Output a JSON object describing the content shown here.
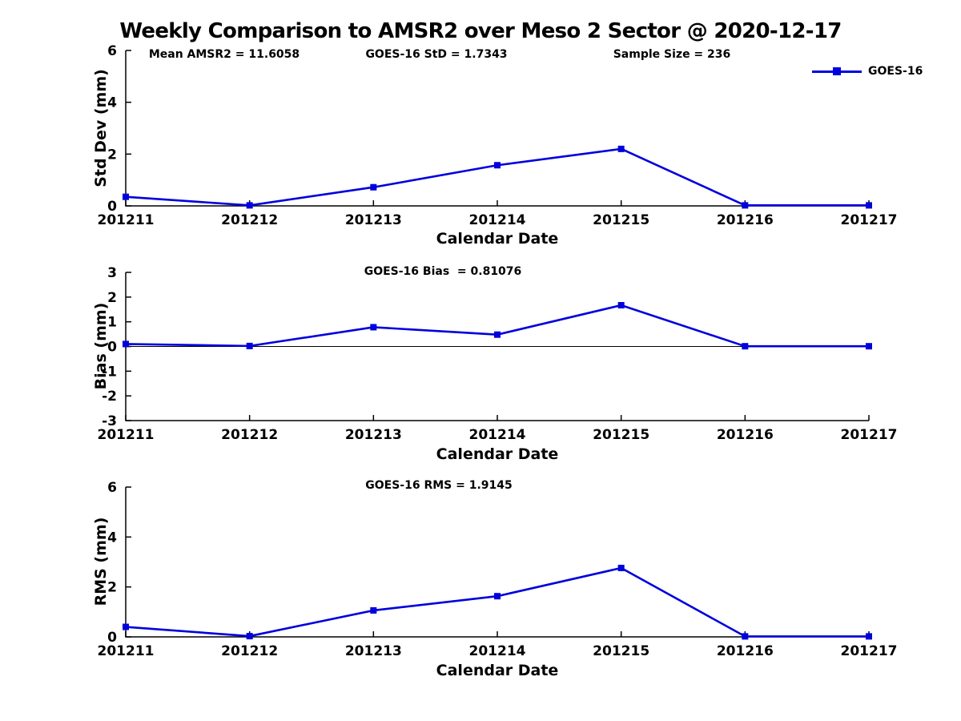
{
  "title": "Weekly Comparison to AMSR2 over Meso 2 Sector @ 2020-12-17",
  "colors": {
    "line": "#0000dd",
    "axis": "#000000",
    "text": "#000000",
    "background": "#ffffff"
  },
  "legend": {
    "label": "GOES-16",
    "position": "top-right"
  },
  "stats": {
    "mean_amsr2": "Mean AMSR2 = 11.6058",
    "goes16_std": "GOES-16 StD = 1.7343",
    "sample_size": "Sample Size = 236",
    "goes16_bias": "GOES-16 Bias  = 0.81076",
    "goes16_rms": "GOES-16 RMS = 1.9145"
  },
  "chart_data": [
    {
      "type": "line",
      "title": "",
      "categories": [
        "201211",
        "201212",
        "201213",
        "201214",
        "201215",
        "201216",
        "201217"
      ],
      "series": [
        {
          "name": "GOES-16",
          "values": [
            0.35,
            0.02,
            0.72,
            1.57,
            2.2,
            0.02,
            0.02
          ]
        }
      ],
      "xlabel": "Calendar Date",
      "ylabel": "Std Dev (mm)",
      "ylim": [
        0,
        6
      ],
      "yticks": [
        0,
        2,
        4,
        6
      ],
      "grid": false,
      "zero_line": false,
      "legend_position": "top-right",
      "marker": "square"
    },
    {
      "type": "line",
      "title": "GOES-16 Bias  = 0.81076",
      "categories": [
        "201211",
        "201212",
        "201213",
        "201214",
        "201215",
        "201216",
        "201217"
      ],
      "series": [
        {
          "name": "GOES-16",
          "values": [
            0.1,
            0.02,
            0.78,
            0.48,
            1.67,
            0.01,
            0.01
          ]
        }
      ],
      "xlabel": "Calendar Date",
      "ylabel": "Bias (mm)",
      "ylim": [
        -3,
        3
      ],
      "yticks": [
        -3,
        -2,
        -1,
        0,
        1,
        2,
        3
      ],
      "grid": false,
      "zero_line": true,
      "legend_position": "none",
      "marker": "square"
    },
    {
      "type": "line",
      "title": "GOES-16 RMS = 1.9145",
      "categories": [
        "201211",
        "201212",
        "201213",
        "201214",
        "201215",
        "201216",
        "201217"
      ],
      "series": [
        {
          "name": "GOES-16",
          "values": [
            0.4,
            0.03,
            1.06,
            1.63,
            2.76,
            0.02,
            0.02
          ]
        }
      ],
      "xlabel": "Calendar Date",
      "ylabel": "RMS (mm)",
      "ylim": [
        0,
        6
      ],
      "yticks": [
        0,
        2,
        4,
        6
      ],
      "grid": false,
      "zero_line": false,
      "legend_position": "none",
      "marker": "square"
    }
  ]
}
